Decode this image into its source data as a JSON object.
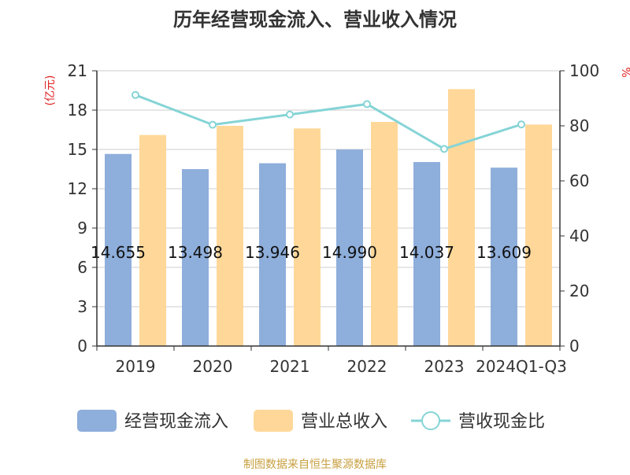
{
  "chart_data": {
    "type": "bar",
    "title": "历年经营现金流入、营业收入情况",
    "categories": [
      "2019",
      "2020",
      "2021",
      "2022",
      "2023",
      "2024Q1-Q3"
    ],
    "series": [
      {
        "name": "经营现金流入",
        "type": "bar",
        "axis": "left",
        "color": "#8eaedb",
        "values": [
          14.655,
          13.498,
          13.946,
          14.99,
          14.037,
          13.609
        ],
        "data_labels": [
          "14.655",
          "13.498",
          "13.946",
          "14.990",
          "14.037",
          "13.609"
        ]
      },
      {
        "name": "营业总收入",
        "type": "bar",
        "axis": "left",
        "color": "#ffd899",
        "values": [
          16.1,
          16.8,
          16.6,
          17.1,
          19.6,
          16.9
        ]
      },
      {
        "name": "营收现金比",
        "type": "line",
        "axis": "right",
        "color": "#85d4d6",
        "values": [
          91.2,
          80.4,
          84.1,
          87.9,
          71.6,
          80.5
        ]
      }
    ],
    "y_left": {
      "label": "(亿元)",
      "ylim": [
        0,
        21
      ],
      "ticks": [
        "0",
        "3",
        "6",
        "9",
        "12",
        "15",
        "18",
        "21"
      ]
    },
    "y_right": {
      "label": "%",
      "ylim": [
        0,
        100
      ],
      "ticks": [
        "0",
        "20",
        "40",
        "60",
        "80",
        "100"
      ]
    },
    "grid": true,
    "legend_position": "bottom",
    "source": "制图数据来自恒生聚源数据库",
    "colors": {
      "title": "#333333",
      "axis_label": "#e02020",
      "source": "#c8a040",
      "grid": "#cccccc",
      "axis": "#333333"
    }
  }
}
